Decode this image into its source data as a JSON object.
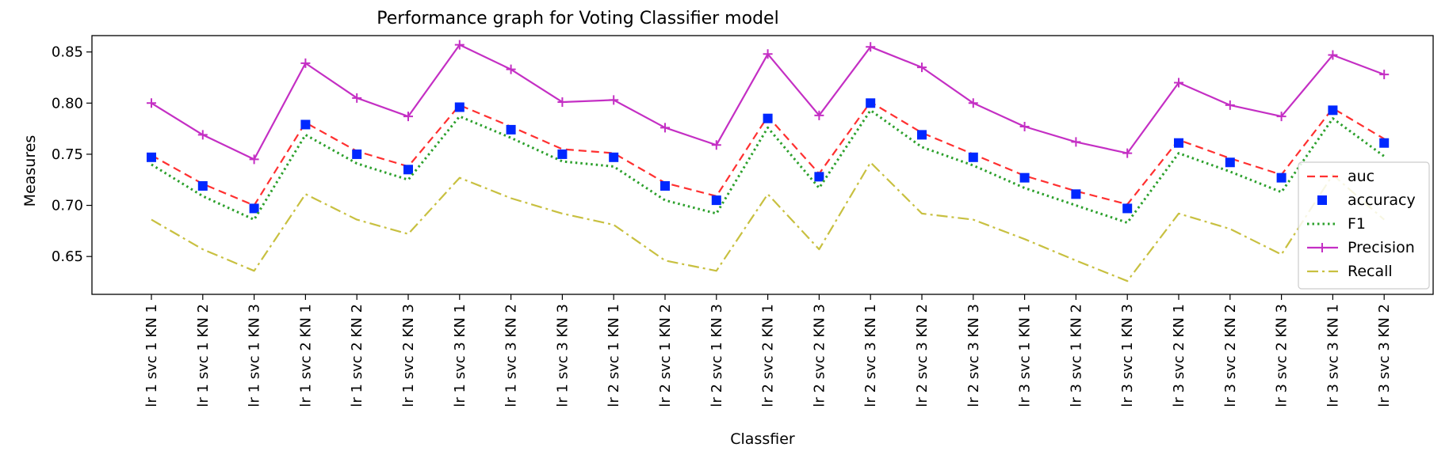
{
  "chart_data": {
    "type": "line",
    "title": "Performance graph for Voting Classifier model",
    "xlabel": "Classfier",
    "ylabel": "Measures",
    "ylim": [
      0.613,
      0.866
    ],
    "yticks": [
      0.65,
      0.7,
      0.75,
      0.8,
      0.85
    ],
    "ytick_labels": [
      "0.65",
      "0.70",
      "0.75",
      "0.80",
      "0.85"
    ],
    "grid": false,
    "legend_position": "right",
    "categories": [
      "lr 1 svc 1 KN 1",
      "lr 1 svc 1 KN 2",
      "lr 1 svc 1 KN 3",
      "lr 1 svc 2 KN 1",
      "lr 1 svc 2 KN 2",
      "lr 1 svc 2 KN 3",
      "lr 1 svc 3 KN 1",
      "lr 1 svc 3 KN 2",
      "lr 1 svc 3 KN 3",
      "lr 2 svc 1 KN 1",
      "lr 2 svc 1 KN 2",
      "lr 2 svc 1 KN 3",
      "lr 2 svc 2 KN 1",
      "lr 2 svc 2 KN 3",
      "lr 2 svc 3 KN 1",
      "lr 2 svc 3 KN 2",
      "lr 2 svc 3 KN 3",
      "lr 3 svc 1 KN 1",
      "lr 3 svc 1 KN 2",
      "lr 3 svc 1 KN 3",
      "lr 3 svc 2 KN 1",
      "lr 3 svc 2 KN 2",
      "lr 3 svc 2 KN 3",
      "lr 3 svc 3 KN 1",
      "lr 3 svc 3 KN 2"
    ],
    "series": [
      {
        "name": "auc",
        "color": "#ff3030",
        "style": "dashed",
        "values": [
          0.749,
          0.721,
          0.7,
          0.781,
          0.753,
          0.738,
          0.798,
          0.777,
          0.755,
          0.751,
          0.722,
          0.709,
          0.787,
          0.731,
          0.801,
          0.771,
          0.75,
          0.729,
          0.714,
          0.701,
          0.764,
          0.746,
          0.73,
          0.795,
          0.765
        ]
      },
      {
        "name": "accuracy",
        "color": "#0028ff",
        "style": "square",
        "values": [
          0.747,
          0.719,
          0.697,
          0.779,
          0.75,
          0.735,
          0.796,
          0.774,
          0.75,
          0.747,
          0.719,
          0.705,
          0.785,
          0.728,
          0.8,
          0.769,
          0.747,
          0.727,
          0.711,
          0.697,
          0.761,
          0.742,
          0.727,
          0.793,
          0.761
        ]
      },
      {
        "name": "F1",
        "color": "#2ca02c",
        "style": "dotted",
        "values": [
          0.74,
          0.709,
          0.686,
          0.769,
          0.741,
          0.725,
          0.787,
          0.766,
          0.743,
          0.738,
          0.705,
          0.692,
          0.776,
          0.717,
          0.793,
          0.757,
          0.739,
          0.717,
          0.7,
          0.683,
          0.751,
          0.733,
          0.713,
          0.785,
          0.748
        ]
      },
      {
        "name": "Precision",
        "color": "#c42fc4",
        "style": "plus",
        "values": [
          0.8,
          0.769,
          0.745,
          0.839,
          0.805,
          0.787,
          0.857,
          0.833,
          0.801,
          0.803,
          0.776,
          0.759,
          0.848,
          0.788,
          0.855,
          0.835,
          0.8,
          0.777,
          0.762,
          0.751,
          0.82,
          0.798,
          0.787,
          0.847,
          0.828
        ]
      },
      {
        "name": "Recall",
        "color": "#c8c040",
        "style": "dashdot",
        "values": [
          0.686,
          0.657,
          0.636,
          0.711,
          0.686,
          0.672,
          0.727,
          0.707,
          0.692,
          0.681,
          0.646,
          0.636,
          0.711,
          0.657,
          0.742,
          0.692,
          0.686,
          0.667,
          0.646,
          0.626,
          0.692,
          0.677,
          0.652,
          0.73,
          0.686
        ]
      }
    ]
  }
}
